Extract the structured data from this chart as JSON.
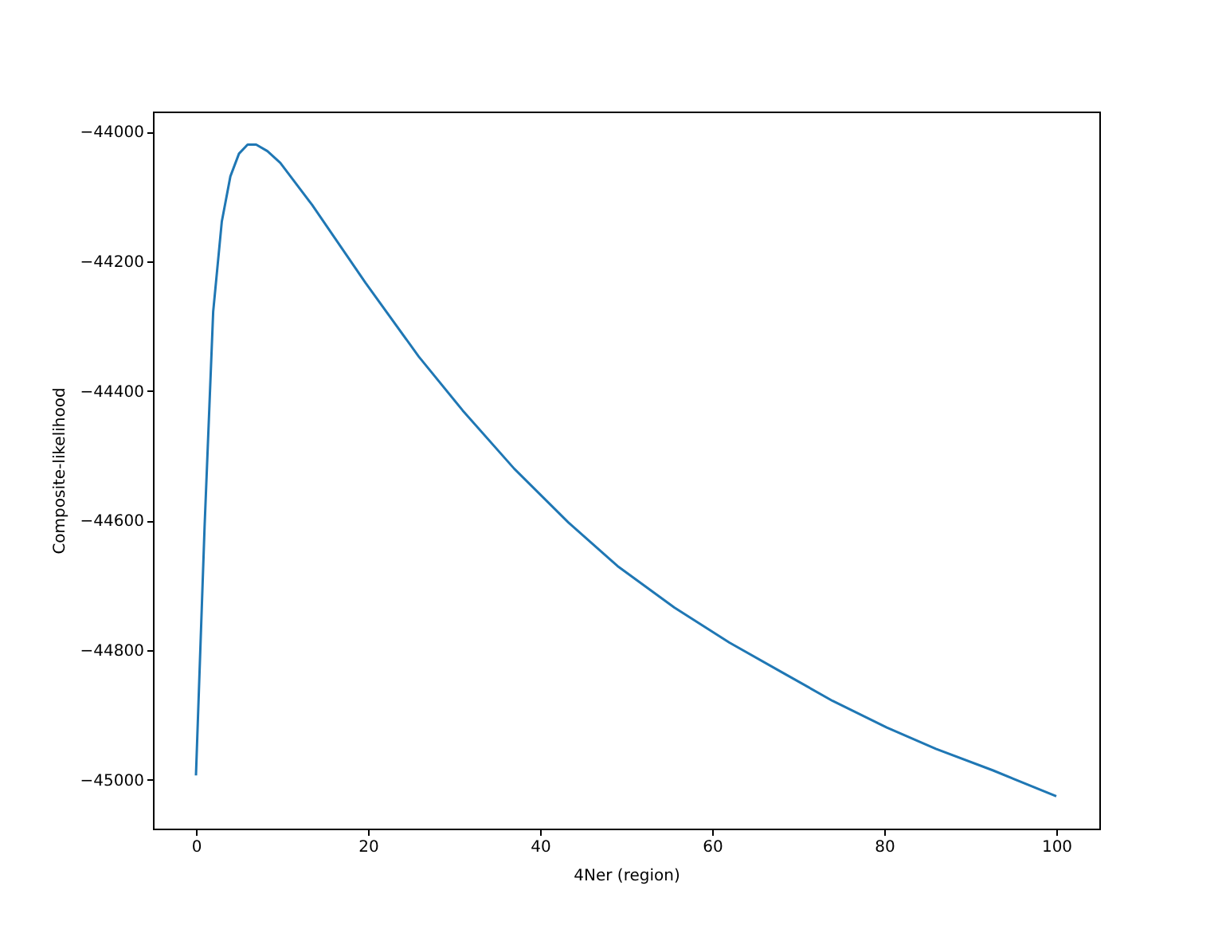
{
  "chart_data": {
    "type": "line",
    "xlabel": "4Ner (region)",
    "ylabel": "Composite-likelihood",
    "x": [
      0,
      1,
      2,
      3,
      4,
      5,
      6,
      7,
      8.3,
      9.8,
      13.5,
      19.7,
      25.9,
      31,
      37,
      43.3,
      49,
      55.6,
      62,
      68,
      74,
      80.3,
      86,
      92.6,
      100
    ],
    "series": [
      {
        "color": "#1f77b4",
        "values": [
          -44993,
          -44610,
          -44278,
          -44139,
          -44069,
          -44034,
          -44020,
          -44020,
          -44030,
          -44048,
          -44113,
          -44233,
          -44347,
          -44430,
          -44520,
          -44603,
          -44670,
          -44734,
          -44788,
          -44833,
          -44878,
          -44919,
          -44952,
          -44985,
          -45025
        ]
      }
    ],
    "xlim": [
      -5,
      105
    ],
    "ylim": [
      -45075,
      -43969
    ],
    "xticks": [
      0,
      20,
      40,
      60,
      80,
      100
    ],
    "yticks": [
      {
        "value": -45000,
        "label": "−45000"
      },
      {
        "value": -44800,
        "label": "−44800"
      },
      {
        "value": -44600,
        "label": "−44600"
      },
      {
        "value": -44400,
        "label": "−44400"
      },
      {
        "value": -44200,
        "label": "−44200"
      },
      {
        "value": -44000,
        "label": "−44000"
      }
    ],
    "grid": false,
    "marker": "none",
    "line_style": "solid"
  }
}
